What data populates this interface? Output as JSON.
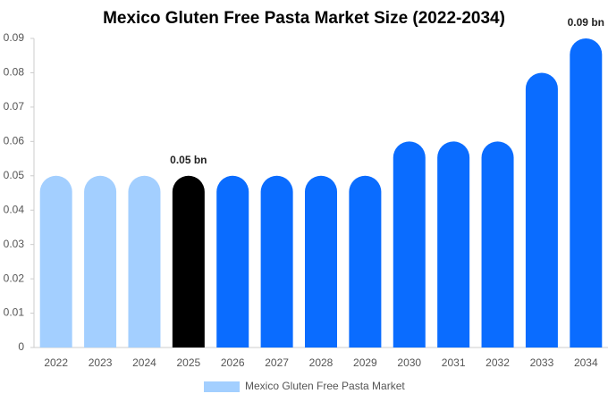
{
  "chart_data": {
    "type": "bar",
    "title": "Mexico Gluten Free Pasta Market Size (2022-2034)",
    "categories": [
      "2022",
      "2023",
      "2024",
      "2025",
      "2026",
      "2027",
      "2028",
      "2029",
      "2030",
      "2031",
      "2032",
      "2033",
      "2034"
    ],
    "series": [
      {
        "name": "Mexico Gluten Free Pasta Market",
        "color": "#a3cfff",
        "values": [
          0.05,
          0.05,
          0.05,
          0.05,
          0.05,
          0.05,
          0.05,
          0.05,
          0.06,
          0.06,
          0.06,
          0.08,
          0.09
        ],
        "value_labels": [
          null,
          null,
          null,
          "0.05 bn",
          null,
          null,
          null,
          null,
          null,
          null,
          null,
          null,
          "0.09 bn"
        ],
        "colors": [
          "#a3cfff",
          "#a3cfff",
          "#a3cfff",
          "#000000",
          "#0a6cff",
          "#0a6cff",
          "#0a6cff",
          "#0a6cff",
          "#0a6cff",
          "#0a6cff",
          "#0a6cff",
          "#0a6cff",
          "#0a6cff"
        ]
      }
    ],
    "ylim": [
      0,
      0.09
    ],
    "yticks": [
      0,
      0.01,
      0.02,
      0.03,
      0.04,
      0.05,
      0.06,
      0.07,
      0.08,
      0.09
    ],
    "grid": false
  }
}
